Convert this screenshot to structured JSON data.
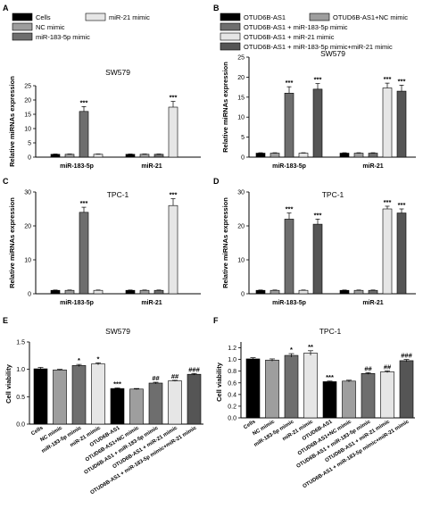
{
  "legend_groups": [
    {
      "series": [
        {
          "name": "Cells",
          "color": "#000000"
        },
        {
          "name": "NC mimic",
          "color": "#9e9e9e"
        },
        {
          "name": "miR-183-5p mimic",
          "color": "#6e6e6e"
        },
        {
          "name": "miR-21 mimic",
          "color": "#e6e6e6"
        }
      ]
    },
    {
      "series": [
        {
          "name": "OTUD6B-AS1",
          "color": "#000000"
        },
        {
          "name": "OTUD6B-AS1+NC mimic",
          "color": "#9e9e9e"
        },
        {
          "name": "OTUD6B-AS1 + miR-183-5p mimic",
          "color": "#6e6e6e"
        },
        {
          "name": "OTUD6B-AS1 + miR-21 mimic",
          "color": "#e6e6e6"
        },
        {
          "name": "OTUD6B-AS1 + miR-183-5p mimic+miR-21 mimic",
          "color": "#555555"
        }
      ]
    }
  ],
  "chart_data": [
    {
      "panel": "A",
      "type": "bar",
      "title": "SW579",
      "ylabel": "Relative miRNAs expression",
      "ylim": [
        0,
        25
      ],
      "yticks": [
        "0",
        "5",
        "10",
        "15",
        "20",
        "25"
      ],
      "categories": [
        "miR-183-5p",
        "miR-21"
      ],
      "series": [
        {
          "name": "Cells",
          "color": "#000000",
          "values": [
            1.0,
            1.0
          ],
          "errors": [
            0.1,
            0.1
          ],
          "sig": [
            "",
            ""
          ]
        },
        {
          "name": "NC mimic",
          "color": "#9e9e9e",
          "values": [
            1.0,
            1.0
          ],
          "errors": [
            0.1,
            0.1
          ],
          "sig": [
            "",
            ""
          ]
        },
        {
          "name": "miR-183-5p mimic",
          "color": "#6e6e6e",
          "values": [
            16.0,
            1.0
          ],
          "errors": [
            1.7,
            0.1
          ],
          "sig": [
            "***",
            ""
          ]
        },
        {
          "name": "miR-21 mimic",
          "color": "#e6e6e6",
          "values": [
            1.0,
            17.5
          ],
          "errors": [
            0.1,
            2.0
          ],
          "sig": [
            "",
            "***"
          ]
        }
      ]
    },
    {
      "panel": "B",
      "type": "bar",
      "title": "SW579",
      "ylabel": "Relative miRNAs expression",
      "ylim": [
        0,
        25
      ],
      "yticks": [
        "0",
        "5",
        "10",
        "15",
        "20",
        "25"
      ],
      "categories": [
        "miR-183-5p",
        "miR-21"
      ],
      "series": [
        {
          "name": "OTUD6B-AS1",
          "color": "#000000",
          "values": [
            1.0,
            1.0
          ],
          "errors": [
            0.1,
            0.1
          ],
          "sig": [
            "",
            ""
          ]
        },
        {
          "name": "OTUD6B-AS1+NC mimic",
          "color": "#9e9e9e",
          "values": [
            1.0,
            1.0
          ],
          "errors": [
            0.1,
            0.1
          ],
          "sig": [
            "",
            ""
          ]
        },
        {
          "name": "OTUD6B-AS1 + miR-183-5p mimic",
          "color": "#6e6e6e",
          "values": [
            16.0,
            1.0
          ],
          "errors": [
            1.6,
            0.1
          ],
          "sig": [
            "***",
            ""
          ]
        },
        {
          "name": "OTUD6B-AS1 + miR-21 mimic",
          "color": "#e6e6e6",
          "values": [
            1.0,
            17.3
          ],
          "errors": [
            0.1,
            1.2
          ],
          "sig": [
            "",
            "***"
          ]
        },
        {
          "name": "OTUD6B-AS1 + miR-183-5p mimic+miR-21 mimic",
          "color": "#555555",
          "values": [
            17.0,
            16.5
          ],
          "errors": [
            1.4,
            1.5
          ],
          "sig": [
            "***",
            "***"
          ]
        }
      ]
    },
    {
      "panel": "C",
      "type": "bar",
      "title": "TPC-1",
      "ylabel": "Relative miRNAs expression",
      "ylim": [
        0,
        30
      ],
      "yticks": [
        "0",
        "10",
        "20",
        "30"
      ],
      "categories": [
        "miR-183-5p",
        "miR-21"
      ],
      "series": [
        {
          "name": "Cells",
          "color": "#000000",
          "values": [
            1.0,
            1.0
          ],
          "errors": [
            0.1,
            0.1
          ],
          "sig": [
            "",
            ""
          ]
        },
        {
          "name": "NC mimic",
          "color": "#9e9e9e",
          "values": [
            1.0,
            1.0
          ],
          "errors": [
            0.1,
            0.1
          ],
          "sig": [
            "",
            ""
          ]
        },
        {
          "name": "miR-183-5p mimic",
          "color": "#6e6e6e",
          "values": [
            24.0,
            1.0
          ],
          "errors": [
            1.5,
            0.1
          ],
          "sig": [
            "***",
            ""
          ]
        },
        {
          "name": "miR-21 mimic",
          "color": "#e6e6e6",
          "values": [
            1.0,
            26.0
          ],
          "errors": [
            0.1,
            2.0
          ],
          "sig": [
            "",
            "***"
          ]
        }
      ]
    },
    {
      "panel": "D",
      "type": "bar",
      "title": "TPC-1",
      "ylabel": "Relative miRNAs expression",
      "ylim": [
        0,
        30
      ],
      "yticks": [
        "0",
        "10",
        "20",
        "30"
      ],
      "categories": [
        "miR-183-5p",
        "miR-21"
      ],
      "series": [
        {
          "name": "OTUD6B-AS1",
          "color": "#000000",
          "values": [
            1.0,
            1.0
          ],
          "errors": [
            0.1,
            0.1
          ],
          "sig": [
            "",
            ""
          ]
        },
        {
          "name": "OTUD6B-AS1+NC mimic",
          "color": "#9e9e9e",
          "values": [
            1.0,
            1.0
          ],
          "errors": [
            0.1,
            0.1
          ],
          "sig": [
            "",
            ""
          ]
        },
        {
          "name": "OTUD6B-AS1 + miR-183-5p mimic",
          "color": "#6e6e6e",
          "values": [
            22.0,
            1.0
          ],
          "errors": [
            1.8,
            0.1
          ],
          "sig": [
            "***",
            ""
          ]
        },
        {
          "name": "OTUD6B-AS1 + miR-21 mimic",
          "color": "#e6e6e6",
          "values": [
            1.0,
            25.0
          ],
          "errors": [
            0.1,
            0.8
          ],
          "sig": [
            "",
            "***"
          ]
        },
        {
          "name": "OTUD6B-AS1 + miR-183-5p mimic+miR-21 mimic",
          "color": "#555555",
          "values": [
            20.5,
            23.8
          ],
          "errors": [
            1.5,
            1.2
          ],
          "sig": [
            "***",
            "***"
          ]
        }
      ]
    },
    {
      "panel": "E",
      "type": "bar",
      "title": "SW579",
      "ylabel": "Cell viability",
      "ylim": [
        0,
        1.5
      ],
      "yticks": [
        "0.0",
        "0.5",
        "1.0",
        "1.5"
      ],
      "categories": [
        "Cells",
        "NC mimic",
        "miR-183-5p mimic",
        "miR-21 mimic",
        "OTUD6B-AS1",
        "OTUD6B-AS1+NC mimic",
        "OTUD6B-AS1 + miR-183-5p mimic",
        "OTUD6B-AS1 + miR-21 mimic",
        "OTUD6B-AS1 + miR-183-5p mimic+miR-21 mimic"
      ],
      "values": [
        1.01,
        0.99,
        1.07,
        1.1,
        0.65,
        0.64,
        0.75,
        0.79,
        0.91
      ],
      "errors": [
        0.025,
        0.01,
        0.02,
        0.02,
        0.01,
        0.01,
        0.015,
        0.01,
        0.015
      ],
      "colors": [
        "#000000",
        "#9e9e9e",
        "#6e6e6e",
        "#e6e6e6",
        "#000000",
        "#9e9e9e",
        "#6e6e6e",
        "#e6e6e6",
        "#555555"
      ],
      "sig": [
        "",
        "",
        "*",
        "*",
        "***",
        "",
        "##",
        "##",
        "###"
      ]
    },
    {
      "panel": "F",
      "type": "bar",
      "title": "TPC-1",
      "ylabel": "Cell viability",
      "ylim": [
        0,
        1.3
      ],
      "yticks": [
        "0.0",
        "0.2",
        "0.4",
        "0.6",
        "0.8",
        "1.0",
        "1.2"
      ],
      "categories": [
        "Cells",
        "NC mimic",
        "miR-183-5p mimic",
        "miR-21 mimic",
        "OTUD6B-AS1",
        "OTUD6B-AS1+NC mimic",
        "OTUD6B-AS1 + miR-183-5p mimic",
        "OTUD6B-AS1 + miR-21 mimic",
        "OTUD6B-AS1 + miR-183-5p mimic+miR-21 mimic"
      ],
      "values": [
        1.01,
        0.99,
        1.07,
        1.11,
        0.62,
        0.63,
        0.76,
        0.79,
        0.98
      ],
      "errors": [
        0.02,
        0.02,
        0.03,
        0.04,
        0.01,
        0.015,
        0.015,
        0.015,
        0.02
      ],
      "colors": [
        "#000000",
        "#9e9e9e",
        "#6e6e6e",
        "#e6e6e6",
        "#000000",
        "#9e9e9e",
        "#6e6e6e",
        "#e6e6e6",
        "#555555"
      ],
      "sig": [
        "",
        "",
        "*",
        "**",
        "***",
        "",
        "##",
        "##",
        "###"
      ]
    }
  ]
}
